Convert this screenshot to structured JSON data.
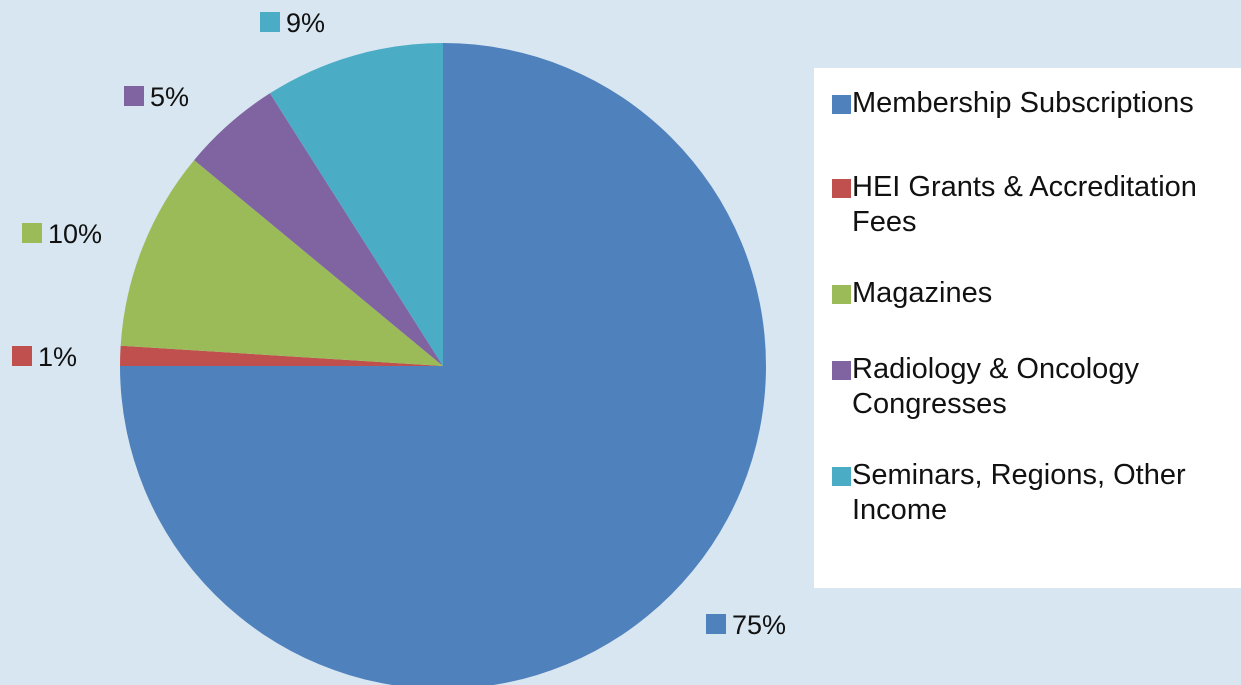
{
  "chart_data": {
    "type": "pie",
    "title": "",
    "categories": [
      "Membership Subscriptions",
      "HEI Grants & Accreditation Fees",
      "Magazines",
      "Radiology & Oncology Congresses",
      "Seminars, Regions, Other Income"
    ],
    "values": [
      75,
      1,
      10,
      5,
      9
    ],
    "data_labels": [
      "75%",
      "1%",
      "10%",
      "5%",
      "9%"
    ],
    "colors": [
      "#4f81bd",
      "#c0504d",
      "#9bbb59",
      "#8064a2",
      "#4bacc6"
    ],
    "legend_position": "right",
    "start_angle": "top, clockwise"
  },
  "legend": {
    "items": [
      {
        "label": "Membership Subscriptions",
        "color": "#4f81bd"
      },
      {
        "label": "HEI Grants & Accreditation Fees",
        "color": "#c0504d"
      },
      {
        "label": "Magazines",
        "color": "#9bbb59"
      },
      {
        "label": "Radiology & Oncology Congresses",
        "color": "#8064a2"
      },
      {
        "label": "Seminars, Regions, Other Income",
        "color": "#4bacc6"
      }
    ]
  }
}
